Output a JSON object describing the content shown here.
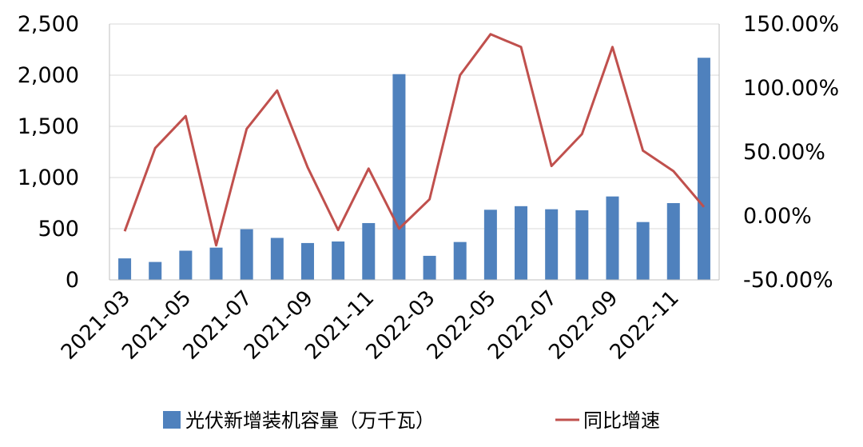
{
  "chart_data": {
    "type": "bar",
    "categories": [
      "2021-03",
      "2021-04",
      "2021-05",
      "2021-06",
      "2021-07",
      "2021-08",
      "2021-09",
      "2021-10",
      "2021-11",
      "2021-12",
      "2022-03",
      "2022-04",
      "2022-05",
      "2022-06",
      "2022-07",
      "2022-08",
      "2022-09",
      "2022-10",
      "2022-11",
      "2022-12"
    ],
    "x_tick_labels": [
      "2021-03",
      "2021-05",
      "2021-07",
      "2021-09",
      "2021-11",
      "2022-03",
      "2022-05",
      "2022-07",
      "2022-09",
      "2022-11"
    ],
    "series": [
      {
        "name": "光伏新增装机容量（万千瓦）",
        "type": "bar",
        "axis": "left",
        "color": "#4f81bd",
        "values": [
          210,
          175,
          285,
          315,
          495,
          410,
          360,
          375,
          555,
          2010,
          235,
          370,
          685,
          720,
          690,
          680,
          815,
          565,
          750,
          2170
        ]
      },
      {
        "name": "同比增速",
        "type": "line",
        "axis": "right",
        "color": "#c0504d",
        "values": [
          -12,
          53,
          78,
          -23,
          68,
          98,
          38,
          -11,
          37,
          -10,
          13,
          110,
          142,
          132,
          39,
          64,
          132,
          51,
          35,
          7
        ]
      }
    ],
    "y_left": {
      "min": 0,
      "max": 2500,
      "ticks": [
        "0",
        "500",
        "1,000",
        "1,500",
        "2,000",
        "2,500"
      ]
    },
    "y_right": {
      "min": -50,
      "max": 150,
      "ticks": [
        "-50.00%",
        "0.00%",
        "50.00%",
        "100.00%",
        "150.00%"
      ]
    },
    "grid": "horizontal",
    "legend_position": "bottom"
  }
}
